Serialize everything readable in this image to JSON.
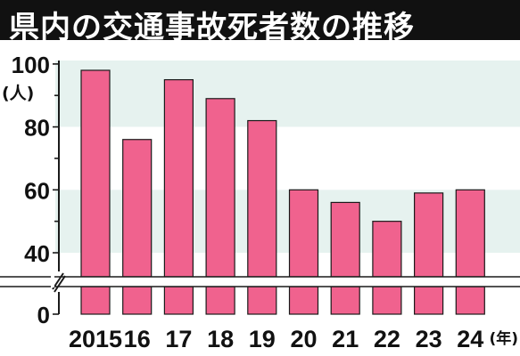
{
  "title": "県内の交通事故死者数の推移",
  "colors": {
    "title_bg": "#111111",
    "title_fg": "#ffffff",
    "band_light": "#e6f2ef",
    "band_white": "#ffffff",
    "bar_fill": "#f0628e",
    "bar_stroke": "#1a1a1a",
    "axis": "#1a1a1a"
  },
  "chart_data": {
    "type": "bar",
    "title": "県内の交通事故死者数の推移",
    "xlabel": "(年)",
    "ylabel": "(人)",
    "categories": [
      "2015",
      "16",
      "17",
      "18",
      "19",
      "20",
      "21",
      "22",
      "23",
      "24"
    ],
    "values": [
      98,
      76,
      95,
      89,
      82,
      60,
      56,
      50,
      59,
      60
    ],
    "yticks": [
      0,
      40,
      60,
      80,
      100
    ],
    "ylim": [
      0,
      100
    ],
    "axis_break": [
      0,
      30
    ],
    "grid": true
  }
}
